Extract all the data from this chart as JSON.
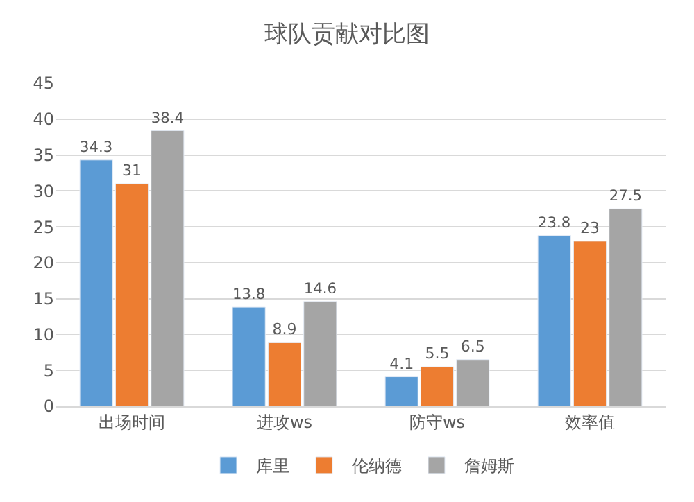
{
  "chart_data": {
    "type": "bar",
    "title": "球队贡献对比图",
    "categories": [
      "出场时间",
      "进攻ws",
      "防守ws",
      "效率值"
    ],
    "series": [
      {
        "name": "库里",
        "color": "#5b9bd5",
        "values": [
          34.3,
          13.8,
          4.1,
          23.8
        ]
      },
      {
        "name": "伦纳德",
        "color": "#ed7d31",
        "values": [
          31,
          8.9,
          5.5,
          23
        ]
      },
      {
        "name": "詹姆斯",
        "color": "#a5a5a5",
        "values": [
          38.4,
          14.6,
          6.5,
          27.5
        ]
      }
    ],
    "ylim": [
      0,
      45
    ],
    "yticks": [
      0,
      5,
      10,
      15,
      20,
      25,
      30,
      35,
      40,
      45
    ],
    "grid": "y",
    "legend": "bottom",
    "data_labels": true
  }
}
